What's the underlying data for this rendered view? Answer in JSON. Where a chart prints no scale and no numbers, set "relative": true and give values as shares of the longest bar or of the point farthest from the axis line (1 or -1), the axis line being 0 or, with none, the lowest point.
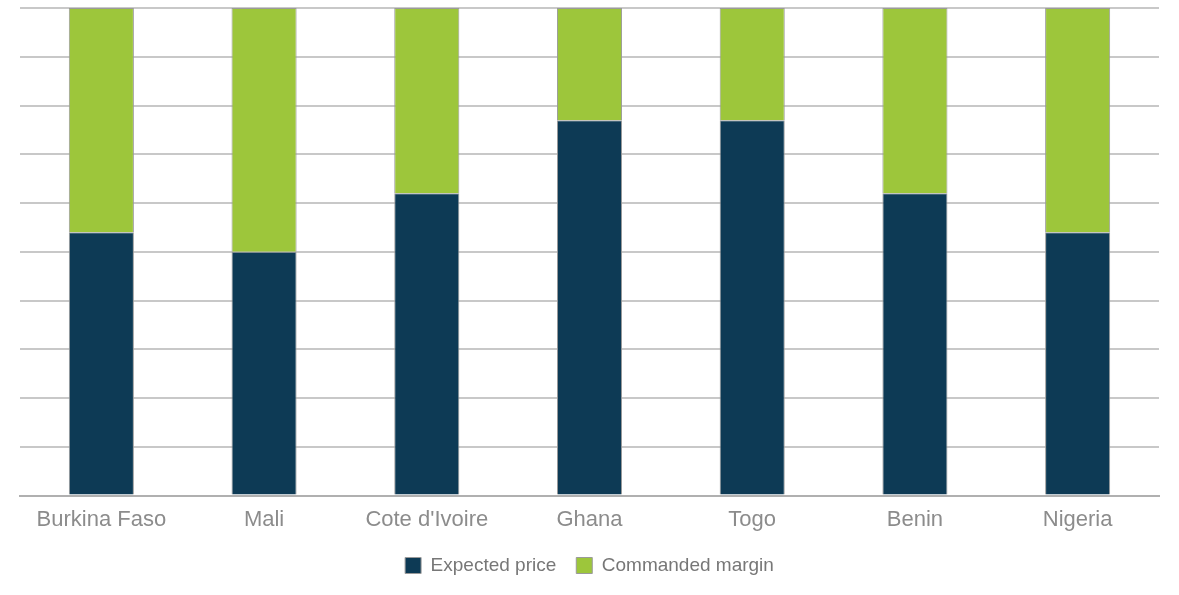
{
  "chart_data": {
    "type": "bar",
    "stacked": true,
    "relative": true,
    "grid": "y",
    "legend": "bottom",
    "categories": [
      "Burkina Faso",
      "Mali",
      "Cote d'Ivoire",
      "Ghana",
      "Togo",
      "Benin",
      "Nigeria"
    ],
    "series": [
      {
        "name": "Expected price",
        "color": "#0d3a55",
        "values": [
          0.54,
          0.5,
          0.62,
          0.77,
          0.77,
          0.62,
          0.54
        ]
      },
      {
        "name": "Commanded margin",
        "color": "#9dc63b",
        "values": [
          0.46,
          0.5,
          0.38,
          0.23,
          0.23,
          0.38,
          0.46
        ]
      }
    ]
  }
}
